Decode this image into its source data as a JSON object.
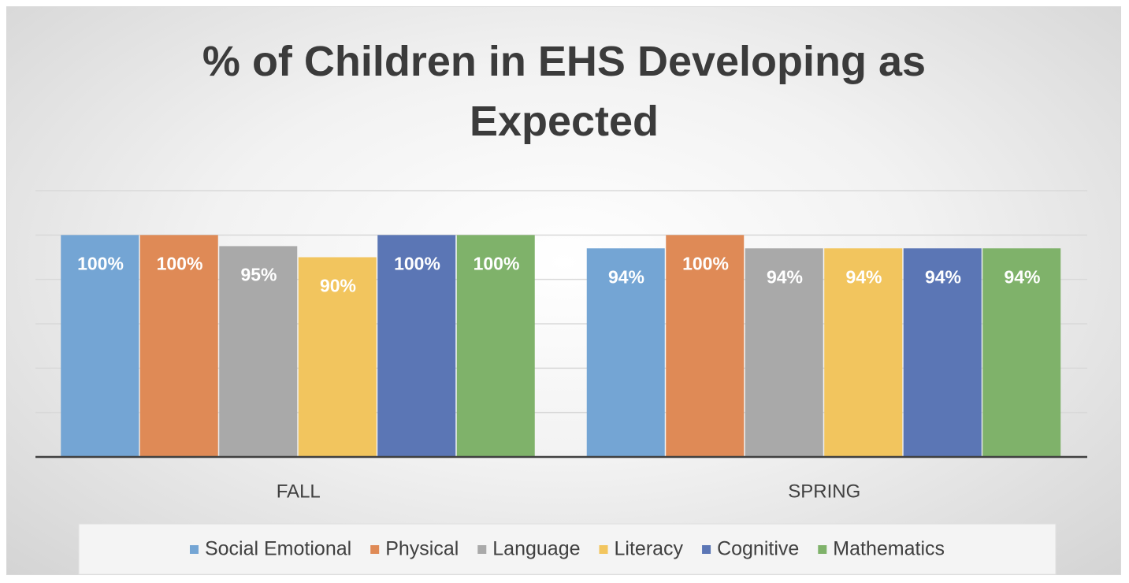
{
  "chart_data": {
    "type": "bar",
    "title": "% of Children in EHS Developing as Expected",
    "categories": [
      "FALL",
      "SPRING"
    ],
    "series": [
      {
        "name": "Social Emotional",
        "color": "#74a5d4",
        "values": [
          100,
          94
        ],
        "value_labels": [
          "100%",
          "94%"
        ]
      },
      {
        "name": "Physical",
        "color": "#df8a56",
        "values": [
          100,
          100
        ],
        "value_labels": [
          "100%",
          "100%"
        ]
      },
      {
        "name": "Language",
        "color": "#a9a9a9",
        "values": [
          95,
          94
        ],
        "value_labels": [
          "95%",
          "94%"
        ]
      },
      {
        "name": "Literacy",
        "color": "#f2c55e",
        "values": [
          90,
          94
        ],
        "value_labels": [
          "90%",
          "94%"
        ]
      },
      {
        "name": "Cognitive",
        "color": "#5b76b5",
        "values": [
          100,
          94
        ],
        "value_labels": [
          "100%",
          "94%"
        ]
      },
      {
        "name": "Mathematics",
        "color": "#7fb26a",
        "values": [
          100,
          94
        ],
        "value_labels": [
          "100%",
          "94%"
        ]
      }
    ],
    "ylim": [
      0,
      120
    ],
    "yticks": [
      0,
      20,
      40,
      60,
      80,
      100,
      120
    ],
    "grid": true,
    "legend": "bottom"
  }
}
